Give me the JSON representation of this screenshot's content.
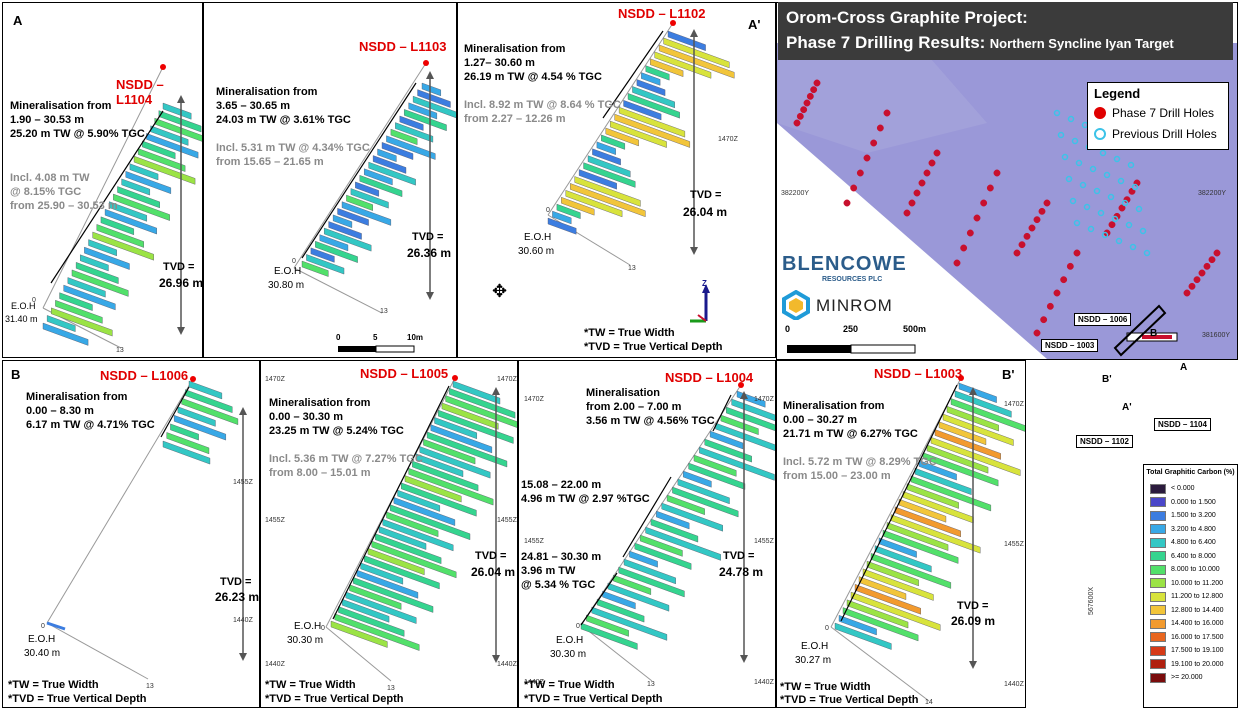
{
  "title": {
    "line1": "Orom-Cross Graphite Project:",
    "line2_bold": "Phase 7 Drilling Results:",
    "line2_rest": "Northern Syncline Iyan Target"
  },
  "legend": {
    "heading": "Legend",
    "phase7": "Phase 7 Drill Holes",
    "previous": "Previous Drill Holes",
    "phase7_color": "#c8102e",
    "previous_color": "#3cc3e8"
  },
  "map": {
    "grid_y_top": "382200Y",
    "grid_y_mid": "381600Y",
    "grid_x": "567600X",
    "scale": {
      "zero": "0",
      "mid": "250",
      "end": "500m"
    },
    "section_labels": {
      "A": "A",
      "A_prime": "A'",
      "B": "B",
      "B_prime": "B'"
    },
    "hole_labels": [
      "NSDD – 1006",
      "NSDD – 1003",
      "NSDD – 1102",
      "NSDD – 1104"
    ]
  },
  "logos": {
    "blencowe": "BLENCOWE",
    "blencowe_sub": "RESOURCES PLC",
    "minrom": "MINROM"
  },
  "tgc_legend": {
    "title": "Total Graphitic Carbon (%)",
    "items": [
      {
        "label": "< 0.000",
        "color": "#2b1b3d"
      },
      {
        "label": "0.000 to 1.500",
        "color": "#4a47c9"
      },
      {
        "label": "1.500 to 3.200",
        "color": "#3c7de0"
      },
      {
        "label": "3.200 to 4.800",
        "color": "#38a8e6"
      },
      {
        "label": "4.800 to 6.400",
        "color": "#33c7c4"
      },
      {
        "label": "6.400 to 8.000",
        "color": "#35d48f"
      },
      {
        "label": "8.000 to 10.000",
        "color": "#52e06a"
      },
      {
        "label": "10.000 to 11.200",
        "color": "#9be345"
      },
      {
        "label": "11.200 to 12.800",
        "color": "#d8e33c"
      },
      {
        "label": "12.800 to 14.400",
        "color": "#f2c53a"
      },
      {
        "label": "14.400 to 16.000",
        "color": "#f29a2e"
      },
      {
        "label": "16.000 to 17.500",
        "color": "#e8661f"
      },
      {
        "label": "17.500 to 19.100",
        "color": "#d63a17"
      },
      {
        "label": "19.100 to 20.000",
        "color": "#b0200f"
      },
      {
        "label": ">= 20.000",
        "color": "#7a0c0c"
      }
    ]
  },
  "footnote": {
    "tw": "*TW = True Width",
    "tvd": "*TVD = True Vertical Depth"
  },
  "panels": {
    "A": {
      "corner": "A",
      "hole": "NSDD – L1104",
      "min_title": "Mineralisation from",
      "min_range": "1.90 – 30.53 m",
      "min_grade": "25.20 m TW @ 5.90% TGC",
      "incl1": "Incl. 4.08 m TW",
      "incl2": "@ 8.15% TGC",
      "incl3": "from 25.90 – 30.53 m",
      "tvd": "TVD =",
      "tvd_val": "26.96 m",
      "eoh": "E.O.H",
      "eoh_val": "31.40 m",
      "t0": "0",
      "t13": "13"
    },
    "L1103": {
      "hole": "NSDD – L1103",
      "min_title": "Mineralisation from",
      "min_range": "3.65 – 30.65 m",
      "min_grade": "24.03 m TW @ 3.61% TGC",
      "incl1": "Incl. 5.31 m TW @ 4.34% TGC",
      "incl2": "from 15.65 – 21.65 m",
      "tvd": "TVD =",
      "tvd_val": "26.36 m",
      "eoh": "E.O.H",
      "eoh_val": "30.80 m",
      "t0": "0",
      "t13": "13",
      "scale0": "0",
      "scale5": "5",
      "scale10": "10m"
    },
    "Aprime": {
      "corner": "A'",
      "hole": "NSDD – L1102",
      "min_title": "Mineralisation from",
      "min_range": "1.27– 30.60 m",
      "min_grade": "26.19 m TW @ 4.54 % TGC",
      "incl1": "Incl. 8.92 m TW @ 8.64 % TGC",
      "incl2": "from 2.27 – 12.26 m",
      "z": "1470Z",
      "tvd": "TVD =",
      "tvd_val": "26.04 m",
      "eoh": "E.O.H",
      "eoh_val": "30.60 m",
      "t0": "0",
      "t13": "13",
      "axis_z": "Z",
      "tw": "*TW = True Width",
      "tvd_note": "*TVD = True Vertical Depth"
    },
    "B": {
      "corner": "B",
      "hole": "NSDD – L1006",
      "min_title": "Mineralisation from",
      "min_range": "0.00 – 8.30 m",
      "min_grade": "6.17 m TW @ 4.71% TGC",
      "z1": "1455Z",
      "z2": "1440Z",
      "tvd": "TVD =",
      "tvd_val": "26.23 m",
      "eoh": "E.O.H",
      "eoh_val": "30.40 m",
      "t0": "0",
      "t13": "13"
    },
    "L1005": {
      "hole": "NSDD – L1005",
      "min_title": "Mineralisation from",
      "min_range": "0.00 – 30.30 m",
      "min_grade": "23.25 m TW @ 5.24% TGC",
      "incl1": "Incl. 5.36 m TW @ 7.27% TGC",
      "incl2": "from 8.00 – 15.01 m",
      "z1": "1470Z",
      "z2": "1455Z",
      "z3": "1440Z",
      "z1r": "1470Z",
      "z2r": "1455Z",
      "z3r": "1440Z",
      "tvd": "TVD =",
      "tvd_val": "26.04 m",
      "eoh": "E.O.H",
      "eoh_val": "30.30 m",
      "t0": "0",
      "t13": "13"
    },
    "L1004": {
      "hole": "NSDD – L1004",
      "min_title": "Mineralisation",
      "min_range": "from 2.00 – 7.00 m",
      "min_grade": "3.56 m TW @ 4.56% TGC",
      "m2a": "15.08 – 22.00 m",
      "m2b": "4.96 m TW @ 2.97 %TGC",
      "m3a": "24.81 – 30.30 m",
      "m3b": "3.96 m TW",
      "m3c": "@ 5.34 % TGC",
      "z1": "1470Z",
      "z2": "1455Z",
      "z3": "1440Z",
      "z1r": "1470Z",
      "z2r": "1455Z",
      "z3r": "1440Z",
      "tvd": "TVD =",
      "tvd_val": "24.78 m",
      "eoh": "E.O.H",
      "eoh_val": "30.30 m",
      "t0": "0",
      "t13": "13"
    },
    "Bprime": {
      "corner": "B'",
      "hole": "NSDD – L1003",
      "min_title": "Mineralisation from",
      "min_range": "0.00 – 30.27 m",
      "min_grade": "21.71 m TW @ 6.27% TGC",
      "incl1": "Incl. 5.72 m TW @ 8.29% TGC",
      "incl2": "from 15.00 – 23.00 m",
      "z1": "1470Z",
      "z2": "1455Z",
      "z3": "1440Z",
      "tvd": "TVD =",
      "tvd_val": "26.09 m",
      "eoh": "E.O.H",
      "eoh_val": "30.27 m",
      "t0": "0",
      "t14": "14"
    }
  }
}
